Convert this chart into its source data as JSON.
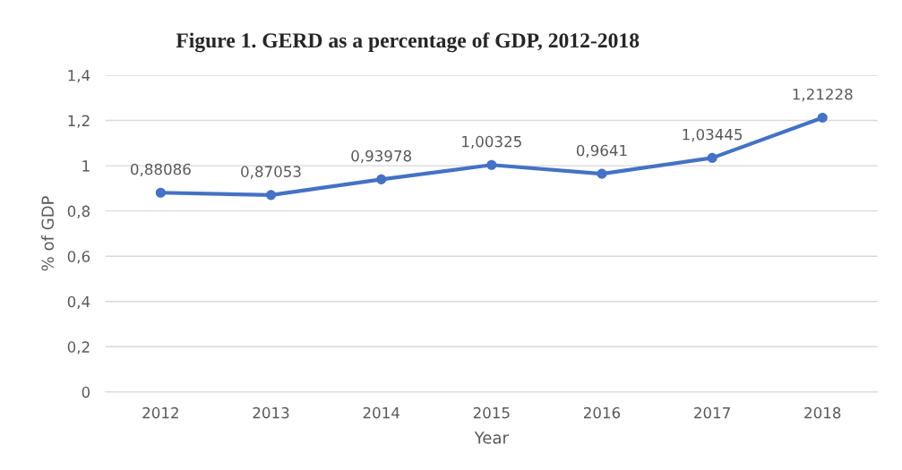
{
  "chart_data": {
    "type": "line",
    "title": "Figure 1. GERD as a percentage of GDP, 2012-2018",
    "xlabel": "Year",
    "ylabel": "% of GDP",
    "categories": [
      "2012",
      "2013",
      "2014",
      "2015",
      "2016",
      "2017",
      "2018"
    ],
    "series": [
      {
        "color": "#4472c4",
        "values": [
          0.88086,
          0.87053,
          0.93978,
          1.00325,
          0.9641,
          1.03445,
          1.21228
        ],
        "value_labels": [
          "0,88086",
          "0,87053",
          "0,93978",
          "1,00325",
          "0,9641",
          "1,03445",
          "1,21228"
        ]
      }
    ],
    "ylim": [
      0,
      1.4
    ],
    "yticks": [
      0,
      {
        "value": 0.2,
        "label": "0,2"
      },
      {
        "value": 0.4,
        "label": "0,4"
      },
      {
        "value": 0.6,
        "label": "0,6"
      },
      {
        "value": 0.8,
        "label": "0,8"
      },
      1,
      {
        "value": 1.2,
        "label": "1,2"
      },
      {
        "value": 1.4,
        "label": "1,4"
      }
    ],
    "grid": "y",
    "legend": false,
    "marker": "circle",
    "line_style": "solid"
  }
}
